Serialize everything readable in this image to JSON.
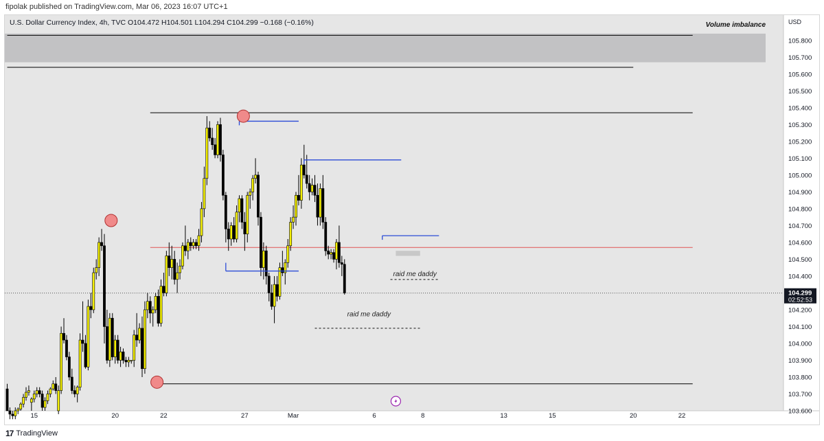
{
  "header": {
    "caption": "fipolak published on TradingView.com, Mar 06, 2023 16:07 UTC+1",
    "symbol_line": "U.S. Dollar Currency Index, 4h, TVC  O104.472  H104.501  L104.294  C104.299  −0.168 (−0.16%)"
  },
  "footer": {
    "logo_glyph": "17",
    "brand": "TradingView"
  },
  "chart_data": {
    "type": "candlestick",
    "currency": "USD",
    "y_range": [
      103.6,
      105.95
    ],
    "y_ticks": [
      {
        "v": 105.8,
        "label": "105.800"
      },
      {
        "v": 105.7,
        "label": "105.700"
      },
      {
        "v": 105.6,
        "label": "105.600"
      },
      {
        "v": 105.5,
        "label": "105.500"
      },
      {
        "v": 105.4,
        "label": "105.400"
      },
      {
        "v": 105.3,
        "label": "105.300"
      },
      {
        "v": 105.2,
        "label": "105.200"
      },
      {
        "v": 105.1,
        "label": "105.100"
      },
      {
        "v": 105.0,
        "label": "105.000"
      },
      {
        "v": 104.9,
        "label": "104.900"
      },
      {
        "v": 104.8,
        "label": "104.800"
      },
      {
        "v": 104.7,
        "label": "104.700"
      },
      {
        "v": 104.6,
        "label": "104.600"
      },
      {
        "v": 104.5,
        "label": "104.500"
      },
      {
        "v": 104.4,
        "label": "104.400"
      },
      {
        "v": 104.2,
        "label": "104.200"
      },
      {
        "v": 104.1,
        "label": "104.100"
      },
      {
        "v": 104.0,
        "label": "104.000"
      },
      {
        "v": 103.9,
        "label": "103.900"
      },
      {
        "v": 103.8,
        "label": "103.800"
      },
      {
        "v": 103.7,
        "label": "103.700"
      },
      {
        "v": 103.6,
        "label": "103.600"
      }
    ],
    "x_ticks": [
      {
        "label": "15",
        "bar": 10
      },
      {
        "label": "20",
        "bar": 40
      },
      {
        "label": "22",
        "bar": 58
      },
      {
        "label": "27",
        "bar": 88
      },
      {
        "label": "Mar",
        "bar": 106
      },
      {
        "label": "6",
        "bar": 136
      },
      {
        "label": "8",
        "bar": 154
      },
      {
        "label": "13",
        "bar": 184
      },
      {
        "label": "15",
        "bar": 202
      },
      {
        "label": "20",
        "bar": 232
      },
      {
        "label": "22",
        "bar": 250
      }
    ],
    "last_price": {
      "value": 104.299,
      "label": "104.299",
      "countdown": "02:52:53"
    },
    "candles": [
      [
        103.73,
        103.76,
        103.6,
        103.6
      ],
      [
        103.6,
        103.62,
        103.55,
        103.58
      ],
      [
        103.58,
        103.6,
        103.55,
        103.57
      ],
      [
        103.57,
        103.62,
        103.55,
        103.6
      ],
      [
        103.6,
        103.62,
        103.58,
        103.61
      ],
      [
        103.61,
        103.65,
        103.6,
        103.64
      ],
      [
        103.64,
        103.7,
        103.62,
        103.68
      ],
      [
        103.68,
        103.74,
        103.66,
        103.71
      ],
      [
        103.71,
        103.75,
        103.69,
        103.72
      ],
      [
        103.65,
        103.68,
        103.6,
        103.67
      ],
      [
        103.67,
        103.72,
        103.65,
        103.7
      ],
      [
        103.7,
        103.74,
        103.68,
        103.72
      ],
      [
        103.72,
        103.74,
        103.68,
        103.7
      ],
      [
        103.7,
        103.72,
        103.6,
        103.62
      ],
      [
        103.62,
        103.68,
        103.6,
        103.66
      ],
      [
        103.66,
        103.72,
        103.64,
        103.7
      ],
      [
        103.7,
        103.74,
        103.68,
        103.73
      ],
      [
        103.73,
        103.78,
        103.72,
        103.76
      ],
      [
        103.76,
        103.8,
        103.7,
        103.72
      ],
      [
        103.6,
        103.75,
        103.58,
        103.72
      ],
      [
        103.72,
        104.1,
        103.7,
        104.06
      ],
      [
        104.06,
        104.15,
        104.0,
        104.02
      ],
      [
        104.02,
        104.05,
        103.9,
        103.92
      ],
      [
        103.92,
        103.95,
        103.78,
        103.8
      ],
      [
        103.8,
        103.85,
        103.7,
        103.72
      ],
      [
        103.72,
        103.75,
        103.68,
        103.7
      ],
      [
        103.7,
        103.75,
        103.65,
        103.74
      ],
      [
        103.74,
        104.06,
        103.72,
        104.02
      ],
      [
        104.02,
        104.25,
        103.95,
        104.0
      ],
      [
        104.0,
        104.05,
        103.85,
        103.86
      ],
      [
        103.86,
        104.26,
        103.84,
        104.22
      ],
      [
        104.22,
        104.3,
        104.15,
        104.2
      ],
      [
        104.2,
        104.45,
        104.18,
        104.42
      ],
      [
        104.42,
        104.5,
        104.38,
        104.45
      ],
      [
        104.45,
        104.63,
        104.4,
        104.6
      ],
      [
        104.6,
        104.68,
        104.55,
        104.58
      ],
      [
        104.58,
        104.65,
        104.0,
        104.1
      ],
      [
        104.1,
        104.2,
        103.88,
        103.9
      ],
      [
        103.9,
        104.18,
        103.86,
        104.15
      ],
      [
        104.15,
        104.18,
        103.9,
        103.92
      ],
      [
        103.92,
        104.05,
        103.88,
        104.02
      ],
      [
        104.02,
        104.05,
        103.88,
        103.9
      ],
      [
        103.9,
        103.98,
        103.86,
        103.95
      ],
      [
        103.95,
        103.97,
        103.88,
        103.9
      ],
      [
        103.9,
        103.92,
        103.86,
        103.89
      ],
      [
        103.89,
        103.92,
        103.86,
        103.9
      ],
      [
        103.9,
        103.9,
        103.88,
        103.9
      ],
      [
        103.9,
        104.08,
        103.86,
        104.05
      ],
      [
        104.05,
        104.18,
        103.98,
        104.02
      ],
      [
        104.02,
        104.12,
        104.0,
        104.09
      ],
      [
        104.09,
        104.16,
        103.8,
        103.85
      ],
      [
        103.85,
        104.25,
        103.82,
        104.2
      ],
      [
        104.2,
        104.3,
        104.15,
        104.25
      ],
      [
        104.25,
        104.28,
        104.12,
        104.18
      ],
      [
        104.18,
        104.22,
        104.1,
        104.2
      ],
      [
        104.2,
        104.3,
        104.18,
        104.28
      ],
      [
        104.28,
        104.32,
        104.1,
        104.12
      ],
      [
        104.12,
        104.38,
        104.1,
        104.34
      ],
      [
        104.34,
        104.42,
        104.28,
        104.3
      ],
      [
        104.3,
        104.55,
        104.28,
        104.52
      ],
      [
        104.52,
        104.6,
        104.4,
        104.45
      ],
      [
        104.45,
        104.58,
        104.38,
        104.5
      ],
      [
        104.5,
        104.55,
        104.35,
        104.38
      ],
      [
        104.38,
        104.48,
        104.3,
        104.42
      ],
      [
        104.42,
        104.5,
        104.38,
        104.46
      ],
      [
        104.46,
        104.6,
        104.44,
        104.58
      ],
      [
        104.58,
        104.7,
        104.52,
        104.55
      ],
      [
        104.55,
        104.62,
        104.5,
        104.6
      ],
      [
        104.6,
        104.63,
        104.55,
        104.58
      ],
      [
        104.58,
        104.62,
        104.56,
        104.6
      ],
      [
        104.6,
        104.62,
        104.56,
        104.58
      ],
      [
        104.58,
        104.68,
        104.55,
        104.64
      ],
      [
        104.64,
        104.84,
        104.6,
        104.8
      ],
      [
        104.8,
        105.05,
        104.75,
        104.98
      ],
      [
        104.98,
        105.35,
        104.94,
        105.28
      ],
      [
        105.28,
        105.32,
        105.2,
        105.22
      ],
      [
        105.22,
        105.28,
        105.15,
        105.18
      ],
      [
        105.18,
        105.22,
        105.1,
        105.12
      ],
      [
        105.12,
        105.32,
        105.1,
        105.3
      ],
      [
        105.3,
        105.34,
        105.08,
        105.12
      ],
      [
        105.12,
        105.15,
        104.85,
        104.88
      ],
      [
        104.88,
        104.9,
        104.6,
        104.68
      ],
      [
        104.68,
        104.72,
        104.55,
        104.62
      ],
      [
        104.62,
        104.72,
        104.58,
        104.7
      ],
      [
        104.7,
        104.75,
        104.6,
        104.62
      ],
      [
        104.62,
        104.82,
        104.6,
        104.78
      ],
      [
        104.78,
        104.88,
        104.72,
        104.86
      ],
      [
        104.86,
        104.88,
        104.68,
        104.72
      ],
      [
        104.72,
        104.78,
        104.55,
        104.65
      ],
      [
        104.65,
        104.9,
        104.6,
        104.88
      ],
      [
        104.88,
        104.92,
        104.8,
        104.9
      ],
      [
        104.9,
        105.0,
        104.85,
        104.98
      ],
      [
        104.98,
        105.1,
        104.95,
        105.0
      ],
      [
        105.0,
        105.02,
        104.7,
        104.75
      ],
      [
        104.75,
        104.78,
        104.4,
        104.45
      ],
      [
        104.45,
        104.6,
        104.38,
        104.55
      ],
      [
        104.55,
        104.58,
        104.35,
        104.4
      ],
      [
        104.4,
        104.42,
        104.25,
        104.3
      ],
      [
        104.3,
        104.35,
        104.2,
        104.22
      ],
      [
        104.22,
        104.4,
        104.12,
        104.35
      ],
      [
        104.35,
        104.4,
        104.25,
        104.28
      ],
      [
        104.28,
        104.48,
        104.26,
        104.45
      ],
      [
        104.45,
        104.55,
        104.4,
        104.42
      ],
      [
        104.42,
        104.5,
        104.35,
        104.48
      ],
      [
        104.48,
        104.62,
        104.45,
        104.58
      ],
      [
        104.58,
        104.75,
        104.55,
        104.72
      ],
      [
        104.72,
        104.82,
        104.68,
        104.75
      ],
      [
        104.75,
        104.9,
        104.7,
        104.88
      ],
      [
        104.88,
        105.0,
        104.82,
        104.85
      ],
      [
        104.85,
        105.1,
        104.8,
        105.06
      ],
      [
        105.06,
        105.18,
        104.98,
        105.0
      ],
      [
        105.0,
        105.12,
        104.92,
        104.95
      ],
      [
        104.95,
        105.0,
        104.85,
        104.9
      ],
      [
        104.9,
        104.98,
        104.88,
        104.94
      ],
      [
        104.94,
        105.0,
        104.84,
        104.88
      ],
      [
        104.88,
        104.95,
        104.7,
        104.75
      ],
      [
        104.75,
        104.95,
        104.7,
        104.92
      ],
      [
        104.92,
        105.0,
        104.68,
        104.72
      ],
      [
        104.72,
        104.75,
        104.52,
        104.55
      ],
      [
        104.55,
        104.58,
        104.5,
        104.53
      ],
      [
        104.53,
        104.56,
        104.5,
        104.54
      ],
      [
        104.54,
        104.56,
        104.48,
        104.5
      ],
      [
        104.5,
        104.62,
        104.44,
        104.6
      ],
      [
        104.6,
        104.7,
        104.45,
        104.48
      ],
      [
        104.48,
        104.52,
        104.4,
        104.47
      ],
      [
        104.47,
        104.5,
        104.29,
        104.3
      ]
    ],
    "candle_first_bar": 0,
    "horizontal_lines": [
      {
        "y": 105.83,
        "x0": 0,
        "x1": 254,
        "color": "#000000"
      },
      {
        "y": 105.64,
        "x0": 0,
        "x1": 232,
        "color": "#000000"
      },
      {
        "y": 105.37,
        "x0": 53,
        "x1": 254,
        "color": "#000000"
      },
      {
        "y": 104.57,
        "x0": 53,
        "x1": 254,
        "color": "#e05555"
      },
      {
        "y": 103.76,
        "x0": 57,
        "x1": 254,
        "color": "#000000"
      }
    ],
    "level_lines": [
      {
        "y": 105.32,
        "x0": 86,
        "x1": 108
      },
      {
        "y": 105.09,
        "x0": 110,
        "x1": 146
      },
      {
        "y": 104.64,
        "x0": 139,
        "x1": 160
      },
      {
        "y": 104.43,
        "x0": 81,
        "x1": 108
      }
    ],
    "raid_lines": [
      {
        "y": 104.38,
        "x0": 142,
        "x1": 160
      },
      {
        "y": 104.09,
        "x0": 114,
        "x1": 153
      }
    ],
    "zone": {
      "y0": 105.67,
      "y1": 105.84,
      "x0": 0,
      "x1": 263,
      "label": "Volume imbalance"
    },
    "small_zone": {
      "y0": 104.52,
      "y1": 104.55,
      "x0": 144,
      "x1": 153
    },
    "markers": [
      {
        "bar": 87.5,
        "y": 105.35
      },
      {
        "bar": 38.5,
        "y": 104.73
      },
      {
        "bar": 55.5,
        "y": 103.77
      }
    ],
    "annotations": [
      {
        "text": "raid me daddy",
        "bar": 143,
        "y": 104.4
      },
      {
        "text": "raid me daddy",
        "bar": 126,
        "y": 104.16
      }
    ],
    "lightning_bar": 144
  }
}
